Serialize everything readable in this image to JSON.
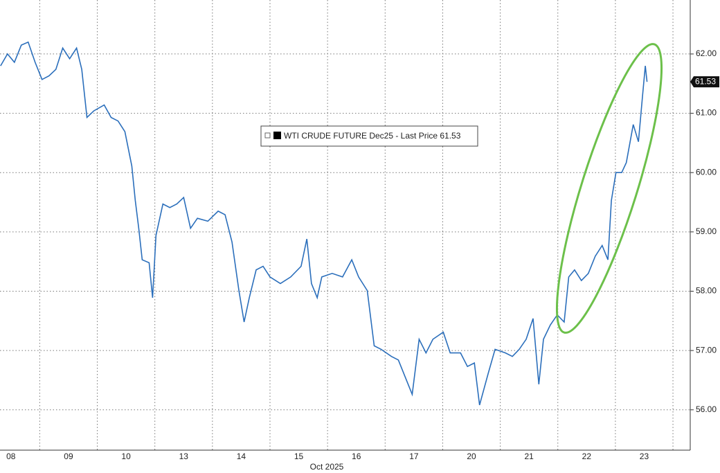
{
  "chart_data": {
    "type": "line",
    "series": [
      {
        "name": "WTI CRUDE FUTURE Dec25 - Last Price 61.53",
        "color": "#2a6ebb",
        "x": [
          -0.68,
          -0.56,
          -0.44,
          -0.32,
          -0.2,
          -0.08,
          0.04,
          0.16,
          0.28,
          0.4,
          0.52,
          0.64,
          0.73,
          0.82,
          0.94,
          1.12,
          1.24,
          1.36,
          1.48,
          1.6,
          1.66,
          1.72,
          1.78,
          1.9,
          1.96,
          2.02,
          2.14,
          2.26,
          2.38,
          2.5,
          2.62,
          2.74,
          2.92,
          3.1,
          3.22,
          3.34,
          3.46,
          3.55,
          3.64,
          3.76,
          3.88,
          4.0,
          4.18,
          4.36,
          4.54,
          4.64,
          4.72,
          4.82,
          4.9,
          5.08,
          5.26,
          5.42,
          5.54,
          5.69,
          5.81,
          5.93,
          6.11,
          6.23,
          6.35,
          6.47,
          6.59,
          6.71,
          6.83,
          7.01,
          7.13,
          7.31,
          7.43,
          7.55,
          7.64,
          7.79,
          7.91,
          8.09,
          8.21,
          8.33,
          8.45,
          8.57,
          8.67,
          8.75,
          8.87,
          8.99,
          9.11,
          9.19,
          9.29,
          9.41,
          9.53,
          9.65,
          9.77,
          9.87,
          9.93,
          10.01,
          10.11,
          10.19,
          10.31,
          10.4,
          10.47,
          10.52,
          10.55
        ],
        "values": [
          61.8,
          62.0,
          61.86,
          62.15,
          62.2,
          61.86,
          61.57,
          61.63,
          61.74,
          62.1,
          61.92,
          62.1,
          61.74,
          60.93,
          61.04,
          61.14,
          60.93,
          60.87,
          60.69,
          60.11,
          59.53,
          59.06,
          58.53,
          58.48,
          57.89,
          58.94,
          59.47,
          59.41,
          59.47,
          59.58,
          59.06,
          59.23,
          59.18,
          59.35,
          59.29,
          58.83,
          58.01,
          57.48,
          57.89,
          58.36,
          58.42,
          58.24,
          58.13,
          58.24,
          58.42,
          58.88,
          58.13,
          57.89,
          58.24,
          58.3,
          58.24,
          58.53,
          58.24,
          58.01,
          57.08,
          57.02,
          56.9,
          56.84,
          56.55,
          56.26,
          57.19,
          56.96,
          57.19,
          57.31,
          56.96,
          56.96,
          56.73,
          56.79,
          56.08,
          56.61,
          57.02,
          56.96,
          56.9,
          57.02,
          57.19,
          57.54,
          56.43,
          57.19,
          57.43,
          57.6,
          57.48,
          58.24,
          58.36,
          58.18,
          58.3,
          58.59,
          58.77,
          58.53,
          59.53,
          60.0,
          60.0,
          60.17,
          60.81,
          60.52,
          61.28,
          61.8,
          61.53
        ]
      }
    ],
    "last_value": 61.53,
    "xlabel": "Oct 2025",
    "xlim": [
      -0.69,
      11.3
    ],
    "xticks": [
      {
        "value": -0.5,
        "label": "08"
      },
      {
        "value": 0.5,
        "label": "09"
      },
      {
        "value": 1.5,
        "label": "10"
      },
      {
        "value": 2.5,
        "label": "13"
      },
      {
        "value": 3.5,
        "label": "14"
      },
      {
        "value": 4.5,
        "label": "15"
      },
      {
        "value": 5.5,
        "label": "16"
      },
      {
        "value": 6.5,
        "label": "17"
      },
      {
        "value": 7.5,
        "label": "20"
      },
      {
        "value": 8.5,
        "label": "21"
      },
      {
        "value": 9.5,
        "label": "22"
      },
      {
        "value": 10.5,
        "label": "23"
      }
    ],
    "ylim": [
      55.32,
      62.91
    ],
    "yticks": [
      {
        "value": 56,
        "label": "56.00"
      },
      {
        "value": 57,
        "label": "57.00"
      },
      {
        "value": 58,
        "label": "58.00"
      },
      {
        "value": 59,
        "label": "59.00"
      },
      {
        "value": 60,
        "label": "60.00"
      },
      {
        "value": 61,
        "label": "61.00"
      },
      {
        "value": 62,
        "label": "62.00"
      }
    ],
    "grid": true
  }
}
